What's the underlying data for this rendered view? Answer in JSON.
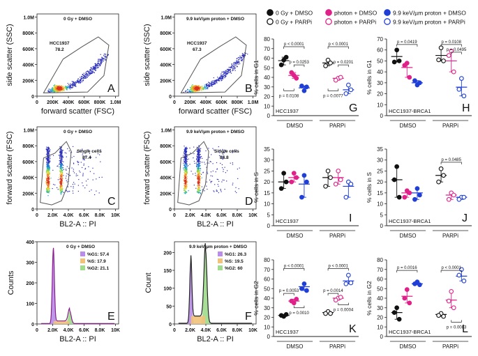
{
  "colors": {
    "black": "#111111",
    "photon": "#e0218a",
    "proton": "#1f3fd6",
    "hist_g1": "#b98de8",
    "hist_s": "#f2c27a",
    "hist_g2": "#9fdc8c",
    "hist_line_ctrl": "#8a1e8f",
    "hist_line_prot": "#222222",
    "gate": "#555555"
  },
  "legend": {
    "items": [
      {
        "label": "0 Gy + DMSO",
        "color": "black",
        "filled": true
      },
      {
        "label": "0 Gy + PARPi",
        "color": "black",
        "filled": false
      },
      {
        "label": "photon + DMSO",
        "color": "photon",
        "filled": true
      },
      {
        "label": "photon + PARPi",
        "color": "photon",
        "filled": false
      },
      {
        "label": "9.9 keV/µm proton + DMSO",
        "color": "proton",
        "filled": true
      },
      {
        "label": "9.9 keV/µm proton + PARPi",
        "color": "proton",
        "filled": false
      }
    ]
  },
  "flow_panels": [
    {
      "letter": "A",
      "title": "0 Gy + DMSO",
      "gate_label": "HCC1937",
      "gate_value": "78.2",
      "ylabel": "side scatter (SSC)",
      "xlabel": "forward scatter (FSC)",
      "xticks": [
        "0",
        "200K",
        "400K",
        "600K",
        "800K",
        "1.0M"
      ],
      "yticks": [
        "0",
        "200K",
        "400K",
        "600K",
        "800K",
        "1.0M"
      ]
    },
    {
      "letter": "B",
      "title": "9.9 keV/µm proton + DMSO",
      "gate_label": "HCC1937",
      "gate_value": "67.3",
      "ylabel": "side scatter (SSC)",
      "xlabel": "forward scatter (FSC)",
      "xticks": [
        "0",
        "200K",
        "400K",
        "600K",
        "800K",
        "1.0M"
      ],
      "yticks": [
        "0",
        "200K",
        "400K",
        "600K",
        "800K",
        "1.0M"
      ]
    },
    {
      "letter": "C",
      "title": "0 Gy + DMSO",
      "gate_label": "Single cells",
      "gate_value": "87.4",
      "ylabel": "forward scatter (FSC)",
      "xlabel": "BL2-A :: PI",
      "xticks": [
        "0",
        "2.0K",
        "4.0K",
        "6.0K",
        "8.0K",
        "10K"
      ],
      "yticks": [
        "0",
        "200K",
        "400K",
        "600K",
        "800K",
        "1.0M"
      ]
    },
    {
      "letter": "D",
      "title": "9.9 keV/µm proton + DMSO",
      "gate_label": "Single cells",
      "gate_value": "84.8",
      "ylabel": "forward scatter (FSC)",
      "xlabel": "BL2-A :: PI",
      "xticks": [
        "0",
        "2.0K",
        "4.0K",
        "6.0K",
        "8.0K",
        "10K"
      ],
      "yticks": [
        "0",
        "200K",
        "400K",
        "600K",
        "800K",
        "1.0M"
      ]
    }
  ],
  "chart_data": [
    {
      "type": "histogram",
      "panel": "E",
      "title": "0 Gy + DMSO",
      "xlabel": "BL2-A :: PI",
      "ylabel": "Counts",
      "xticks": [
        "0",
        "2.0K",
        "4.0K",
        "6.0K",
        "8.0K",
        "10K"
      ],
      "yticks": [
        "0",
        "100",
        "200",
        "300",
        "400"
      ],
      "ylim": [
        0,
        400
      ],
      "x_range": [
        0,
        10000
      ],
      "g1_peak": [
        2000,
        360
      ],
      "g2_peak": [
        4000,
        62
      ],
      "legend": [
        {
          "label": "%G1: 57.4",
          "color": "hist_g1"
        },
        {
          "label": "%S: 17.9",
          "color": "hist_s"
        },
        {
          "label": "%G2: 21.1",
          "color": "hist_g2"
        }
      ],
      "line_color": "hist_line_ctrl"
    },
    {
      "type": "histogram",
      "panel": "F",
      "title": "9.9 keV/µm proton + DMSO",
      "xlabel": "BL2-A :: PI",
      "ylabel": "Count",
      "xticks": [
        "0",
        "2.0K",
        "4.0K",
        "6.0K",
        "8.0K",
        "10K"
      ],
      "yticks": [
        "0",
        "50",
        "100",
        "150",
        "200"
      ],
      "ylim": [
        0,
        230
      ],
      "x_range": [
        0,
        10000
      ],
      "g1_peak": [
        2000,
        172
      ],
      "g2_peak": [
        3800,
        205
      ],
      "legend": [
        {
          "label": "%G1: 26.3",
          "color": "hist_g1"
        },
        {
          "label": "%S: 19.5",
          "color": "hist_s"
        },
        {
          "label": "%G2: 60",
          "color": "hist_g2"
        }
      ],
      "line_color": "hist_line_prot"
    },
    {
      "type": "scatter",
      "panel": "G",
      "cell_line": "HCC1937",
      "ylabel": "% cells in G1",
      "ylim": [
        0,
        80
      ],
      "yticks": [
        0,
        10,
        20,
        30,
        40,
        50,
        60,
        70,
        80
      ],
      "groups": [
        "DMSO",
        "PARPi"
      ],
      "series": [
        {
          "treatment": "0 Gy + DMSO",
          "color": "black",
          "filled": true,
          "mean": 57.4,
          "points": [
            58,
            53,
            61
          ]
        },
        {
          "treatment": "photon + DMSO",
          "color": "photon",
          "filled": true,
          "mean": 42,
          "points": [
            42,
            45,
            39
          ]
        },
        {
          "treatment": "proton + DMSO",
          "color": "proton",
          "filled": true,
          "mean": 29,
          "points": [
            26,
            31,
            30
          ]
        },
        {
          "treatment": "0 Gy + PARPi",
          "color": "black",
          "filled": false,
          "mean": 55,
          "points": [
            58,
            52,
            55
          ]
        },
        {
          "treatment": "photon + PARPi",
          "color": "photon",
          "filled": false,
          "mean": 39,
          "points": [
            39,
            37,
            40
          ]
        },
        {
          "treatment": "proton + PARPi",
          "color": "proton",
          "filled": false,
          "mean": 27,
          "points": [
            32,
            23,
            27
          ]
        }
      ],
      "annotations": [
        {
          "text": "p < 0.0001",
          "from": 0,
          "to": 2,
          "y": 72
        },
        {
          "text": "p = 0.0253",
          "from": 1,
          "to": 2,
          "y": 53
        },
        {
          "text": "p = 0.0108",
          "from": 0,
          "to": 1,
          "y": 26,
          "below": true
        },
        {
          "text": "p < 0.0001",
          "from": 3,
          "to": 5,
          "y": 72
        },
        {
          "text": "p = 0.0201",
          "from": 4,
          "to": 5,
          "y": 53
        },
        {
          "text": "p = 0.0077",
          "from": 3,
          "to": 4,
          "y": 26,
          "below": true
        }
      ]
    },
    {
      "type": "scatter",
      "panel": "H",
      "cell_line": "HCC1937-BRCA1",
      "ylabel": "% cells in G1",
      "ylim": [
        0,
        70
      ],
      "yticks": [
        0,
        10,
        20,
        30,
        40,
        50,
        60,
        70
      ],
      "groups": [
        "DMSO",
        "PARPi"
      ],
      "series": [
        {
          "treatment": "0 Gy + DMSO",
          "color": "black",
          "filled": true,
          "mean": 54,
          "points": [
            60,
            49,
            50
          ]
        },
        {
          "treatment": "photon + DMSO",
          "color": "photon",
          "filled": true,
          "mean": 44,
          "points": [
            48,
            46,
            35
          ]
        },
        {
          "treatment": "proton + DMSO",
          "color": "proton",
          "filled": true,
          "mean": 30,
          "points": [
            28,
            32,
            30
          ]
        },
        {
          "treatment": "0 Gy + PARPi",
          "color": "black",
          "filled": false,
          "mean": 55,
          "points": [
            62,
            51,
            50
          ]
        },
        {
          "treatment": "photon + PARPi",
          "color": "photon",
          "filled": false,
          "mean": 50,
          "points": [
            59,
            55,
            40
          ]
        },
        {
          "treatment": "proton + PARPi",
          "color": "proton",
          "filled": false,
          "mean": 26,
          "points": [
            34,
            24,
            18
          ]
        }
      ],
      "annotations": [
        {
          "text": "p = 0.0419",
          "from": 0,
          "to": 2,
          "y": 65
        },
        {
          "text": "p = 0.0108",
          "from": 3,
          "to": 5,
          "y": 65
        },
        {
          "text": "p = 0.0495",
          "from": 4,
          "to": 5,
          "y": 58
        }
      ]
    },
    {
      "type": "scatter",
      "panel": "I",
      "cell_line": "HCC1937",
      "ylabel": "% cells in S",
      "ylim": [
        0,
        35
      ],
      "yticks": [
        0,
        5,
        10,
        15,
        20,
        25,
        30,
        35
      ],
      "groups": [
        "DMSO",
        "PARPi"
      ],
      "series": [
        {
          "treatment": "0 Gy + DMSO",
          "color": "black",
          "filled": true,
          "mean": 20,
          "points": [
            24,
            17,
            20
          ]
        },
        {
          "treatment": "photon + DMSO",
          "color": "photon",
          "filled": true,
          "mean": 22,
          "points": [
            24,
            20,
            22
          ]
        },
        {
          "treatment": "proton + DMSO",
          "color": "proton",
          "filled": true,
          "mean": 19,
          "points": [
            23,
            13,
            20
          ]
        },
        {
          "treatment": "0 Gy + PARPi",
          "color": "black",
          "filled": false,
          "mean": 22,
          "points": [
            25,
            18,
            22
          ]
        },
        {
          "treatment": "photon + PARPi",
          "color": "photon",
          "filled": false,
          "mean": 22,
          "points": [
            25,
            19,
            21
          ]
        },
        {
          "treatment": "proton + PARPi",
          "color": "proton",
          "filled": false,
          "mean": 18,
          "points": [
            20,
            13,
            19
          ]
        }
      ],
      "annotations": []
    },
    {
      "type": "scatter",
      "panel": "J",
      "cell_line": "HCC1937-BRCA1",
      "ylabel": "% cells in S",
      "ylim": [
        0,
        35
      ],
      "yticks": [
        0,
        5,
        10,
        15,
        20,
        25,
        30,
        35
      ],
      "groups": [
        "DMSO",
        "PARPi"
      ],
      "series": [
        {
          "treatment": "0 Gy + DMSO",
          "color": "black",
          "filled": true,
          "mean": 21,
          "points": [
            27,
            21,
            13
          ]
        },
        {
          "treatment": "photon + DMSO",
          "color": "photon",
          "filled": true,
          "mean": 15,
          "points": [
            16,
            13,
            15
          ]
        },
        {
          "treatment": "proton + DMSO",
          "color": "proton",
          "filled": true,
          "mean": 15,
          "points": [
            17,
            12,
            14
          ]
        },
        {
          "treatment": "0 Gy + PARPi",
          "color": "black",
          "filled": false,
          "mean": 23,
          "points": [
            26,
            20,
            23
          ]
        },
        {
          "treatment": "photon + PARPi",
          "color": "photon",
          "filled": false,
          "mean": 14,
          "points": [
            15,
            12,
            14
          ]
        },
        {
          "treatment": "proton + PARPi",
          "color": "proton",
          "filled": false,
          "mean": 13,
          "points": [
            13,
            12,
            13
          ]
        }
      ],
      "annotations": [
        {
          "text": "p = 0.0485",
          "from": 3,
          "to": 5,
          "y": 29
        }
      ]
    },
    {
      "type": "scatter",
      "panel": "K",
      "cell_line": "HCC1937",
      "ylabel": "% cells in G2",
      "ylim": [
        0,
        80
      ],
      "yticks": [
        0,
        10,
        20,
        30,
        40,
        50,
        60,
        70,
        80
      ],
      "groups": [
        "DMSO",
        "PARPi"
      ],
      "series": [
        {
          "treatment": "0 Gy + DMSO",
          "color": "black",
          "filled": true,
          "mean": 22,
          "points": [
            21,
            22,
            23
          ]
        },
        {
          "treatment": "photon + DMSO",
          "color": "photon",
          "filled": true,
          "mean": 37,
          "points": [
            35,
            37,
            39
          ]
        },
        {
          "treatment": "proton + DMSO",
          "color": "proton",
          "filled": true,
          "mean": 52,
          "points": [
            55,
            50,
            48
          ]
        },
        {
          "treatment": "0 Gy + PARPi",
          "color": "black",
          "filled": false,
          "mean": 25,
          "points": [
            26,
            24,
            24
          ]
        },
        {
          "treatment": "photon + PARPi",
          "color": "photon",
          "filled": false,
          "mean": 40,
          "points": [
            40,
            38,
            41
          ]
        },
        {
          "treatment": "proton + PARPi",
          "color": "proton",
          "filled": false,
          "mean": 58,
          "points": [
            64,
            55,
            56
          ]
        }
      ],
      "annotations": [
        {
          "text": "p < 0.0001",
          "from": 0,
          "to": 2,
          "y": 71
        },
        {
          "text": "p = 0.0053",
          "from": 0,
          "to": 1,
          "y": 45
        },
        {
          "text": "p = 0.0010",
          "from": 1,
          "to": 2,
          "y": 30,
          "below": true
        },
        {
          "text": "p < 0.0001",
          "from": 3,
          "to": 5,
          "y": 71
        },
        {
          "text": "p = 0.0014",
          "from": 3,
          "to": 4,
          "y": 45
        },
        {
          "text": "p = 0.0004",
          "from": 4,
          "to": 5,
          "y": 33,
          "below": true
        }
      ]
    },
    {
      "type": "scatter",
      "panel": "L",
      "cell_line": "HCC1937-BRCA1",
      "ylabel": "% cells in G2",
      "ylim": [
        0,
        80
      ],
      "yticks": [
        0,
        10,
        20,
        30,
        40,
        50,
        60,
        70,
        80
      ],
      "groups": [
        "DMSO",
        "PARPi"
      ],
      "series": [
        {
          "treatment": "0 Gy + DMSO",
          "color": "black",
          "filled": true,
          "mean": 25,
          "points": [
            30,
            25,
            18
          ]
        },
        {
          "treatment": "photon + DMSO",
          "color": "photon",
          "filled": true,
          "mean": 42,
          "points": [
            49,
            40,
            35
          ]
        },
        {
          "treatment": "proton + DMSO",
          "color": "proton",
          "filled": true,
          "mean": 55,
          "points": [
            57,
            55,
            54
          ]
        },
        {
          "treatment": "0 Gy + PARPi",
          "color": "black",
          "filled": false,
          "mean": 23,
          "points": [
            24,
            22,
            21
          ]
        },
        {
          "treatment": "photon + PARPi",
          "color": "photon",
          "filled": false,
          "mean": 38,
          "points": [
            47,
            37,
            30
          ]
        },
        {
          "treatment": "proton + PARPi",
          "color": "proton",
          "filled": false,
          "mean": 63,
          "points": [
            70,
            64,
            58
          ]
        }
      ],
      "annotations": [
        {
          "text": "p = 0.0016",
          "from": 0,
          "to": 2,
          "y": 69
        },
        {
          "text": "p < 0.0001",
          "from": 3,
          "to": 5,
          "y": 69
        },
        {
          "text": "p = 0.0083",
          "from": 4,
          "to": 5,
          "y": 15,
          "below": true
        }
      ]
    }
  ]
}
